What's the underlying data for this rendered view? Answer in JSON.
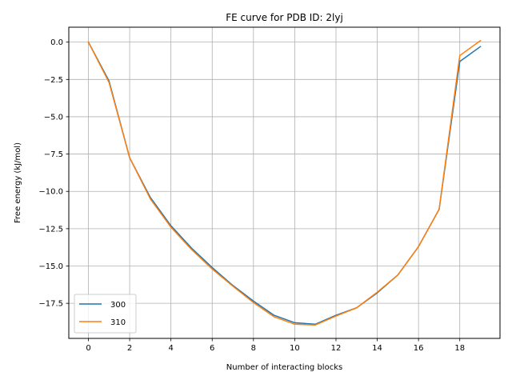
{
  "chart_data": {
    "type": "line",
    "title": "FE curve for PDB ID: 2lyj",
    "xlabel": "Number of interacting blocks",
    "ylabel": "Free energy (kJ/mol)",
    "xlim": [
      -0.95,
      19.95
    ],
    "ylim": [
      -19.85,
      1.0
    ],
    "xticks": [
      0,
      2,
      4,
      6,
      8,
      10,
      12,
      14,
      16,
      18
    ],
    "yticks": [
      0.0,
      -2.5,
      -5.0,
      -7.5,
      -10.0,
      -12.5,
      -15.0,
      -17.5
    ],
    "xtick_labels": [
      "0",
      "2",
      "4",
      "6",
      "8",
      "10",
      "12",
      "14",
      "16",
      "18"
    ],
    "ytick_labels": [
      "0.0",
      "−2.5",
      "−5.0",
      "−7.5",
      "−10.0",
      "−12.5",
      "−15.0",
      "−17.5"
    ],
    "grid": true,
    "legend_position": "lower-left",
    "x": [
      0,
      1,
      2,
      3,
      4,
      5,
      6,
      7,
      8,
      9,
      10,
      11,
      12,
      13,
      14,
      15,
      16,
      17,
      18,
      19
    ],
    "series": [
      {
        "name": "300",
        "color": "#1f77b4",
        "values": [
          0.0,
          -2.6,
          -7.75,
          -10.4,
          -12.3,
          -13.8,
          -15.1,
          -16.3,
          -17.35,
          -18.3,
          -18.8,
          -18.9,
          -18.3,
          -17.8,
          -16.8,
          -15.6,
          -13.7,
          -11.2,
          -1.3,
          -0.3
        ]
      },
      {
        "name": "310",
        "color": "#ff7f0e",
        "values": [
          0.0,
          -2.7,
          -7.75,
          -10.5,
          -12.4,
          -13.9,
          -15.2,
          -16.35,
          -17.45,
          -18.4,
          -18.9,
          -18.95,
          -18.35,
          -17.8,
          -16.75,
          -15.6,
          -13.7,
          -11.2,
          -0.9,
          0.1
        ]
      }
    ]
  }
}
